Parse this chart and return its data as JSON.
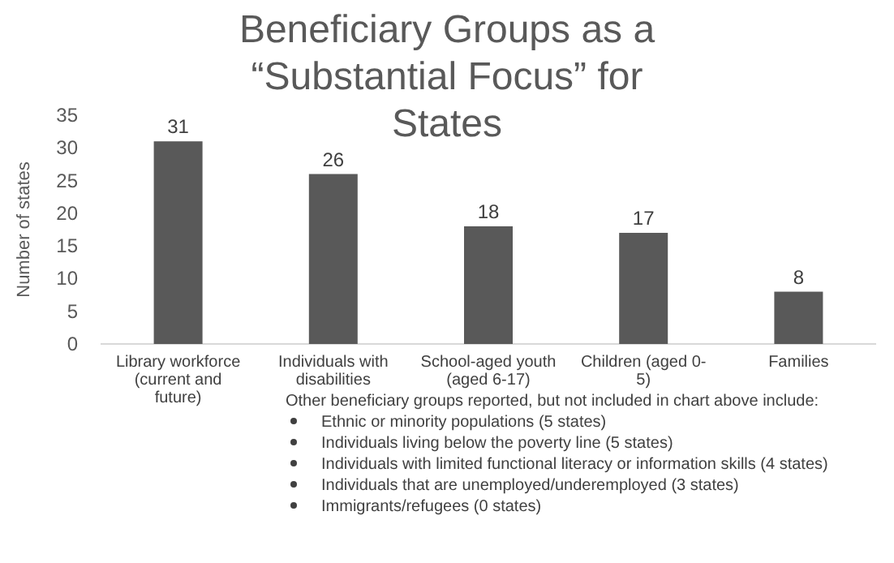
{
  "chart_data": {
    "type": "bar",
    "title": "Beneficiary Groups as a “Substantial Focus” for States",
    "ylabel": "Number of states",
    "categories": [
      "Library workforce (current and future)",
      "Individuals with disabilities",
      "School-aged youth (aged 6-17)",
      "Children (aged 0-5)",
      "Families"
    ],
    "values": [
      31,
      26,
      18,
      17,
      8
    ],
    "color": "#595959",
    "ylim": [
      0,
      35
    ],
    "yticks": [
      0,
      5,
      10,
      15,
      20,
      25,
      30,
      35
    ],
    "data_labels": true,
    "grid": false,
    "annotations": [
      "Other beneficiary groups reported, but not included in chart above include:",
      "Ethnic or minority populations (5 states)",
      "Individuals living below the poverty line (5 states)",
      "Individuals with limited functional literacy or information skills (4 states)",
      "Individuals that are unemployed/underemployed (3 states)",
      "Immigrants/refugees (0 states)"
    ]
  }
}
